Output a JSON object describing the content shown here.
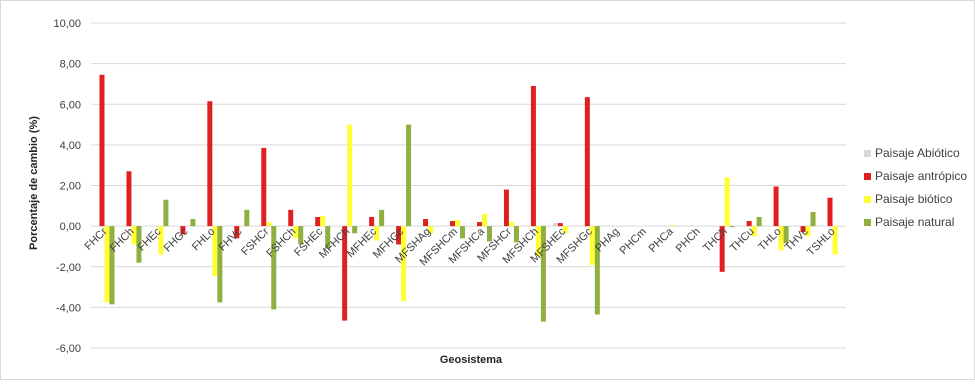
{
  "chart_data": {
    "type": "bar",
    "xlabel": "Geosistema",
    "ylabel": "Porcentaje de cambio (%)",
    "ylim": [
      -6,
      10
    ],
    "yticks": [
      "-6,00",
      "-4,00",
      "-2,00",
      "0,00",
      "2,00",
      "4,00",
      "6,00",
      "8,00",
      "10,00"
    ],
    "grid": true,
    "legend_position": "right",
    "categories": [
      "FHCr",
      "FHCh",
      "FHEc",
      "FHGc",
      "FHLo",
      "FHVc",
      "FSHCr",
      "FSHCh",
      "FSHEc",
      "MFHCh",
      "MFHEc",
      "MFHGc",
      "MFSHAg",
      "MFSHCm",
      "MFSHCa",
      "MFSHCr",
      "MFSHCh",
      "MFSHEc",
      "MFSHGc",
      "PHAg",
      "PHCm",
      "PHCa",
      "PHCh",
      "THCh",
      "THCu",
      "THLo",
      "THVc",
      "TSHLo"
    ],
    "series": [
      {
        "name": "Paisaje Abiótico",
        "color": "#d9d9d9",
        "values": [
          0,
          0,
          0,
          0,
          0,
          0,
          0,
          0,
          0,
          0,
          0,
          0,
          0,
          0,
          0,
          0,
          0,
          0.15,
          0,
          0,
          0,
          0,
          0,
          0,
          0,
          0,
          0,
          0
        ]
      },
      {
        "name": "Paisaje antrópico",
        "color": "#e02020",
        "values": [
          7.45,
          2.7,
          0,
          -0.4,
          6.15,
          -0.6,
          3.85,
          0.8,
          0.45,
          -4.65,
          0.45,
          -0.9,
          0.35,
          0.25,
          0.2,
          1.8,
          6.9,
          0.15,
          6.35,
          0,
          0,
          0,
          0,
          -2.25,
          0.25,
          1.95,
          -0.3,
          1.4
        ]
      },
      {
        "name": "Paisaje biótico",
        "color": "#ffff33",
        "values": [
          -3.75,
          -0.9,
          -1.4,
          0,
          -2.45,
          0,
          0.2,
          -0.6,
          0.5,
          5.0,
          -0.7,
          -3.7,
          -0.35,
          0.3,
          0.6,
          0.2,
          -1.5,
          -0.35,
          -1.9,
          0,
          0,
          0.05,
          0,
          2.4,
          -0.5,
          -1.2,
          -0.5,
          -1.4
        ]
      },
      {
        "name": "Paisaje natural",
        "color": "#8faf3e",
        "values": [
          -3.85,
          -1.8,
          1.3,
          0.35,
          -3.75,
          0.8,
          -4.1,
          -0.9,
          -1.1,
          -0.35,
          0.8,
          5.0,
          0,
          -0.6,
          -0.75,
          -0.8,
          -4.7,
          0,
          -4.35,
          0,
          0,
          0,
          0,
          -0.05,
          0.45,
          -0.85,
          0.7,
          0
        ]
      }
    ]
  }
}
